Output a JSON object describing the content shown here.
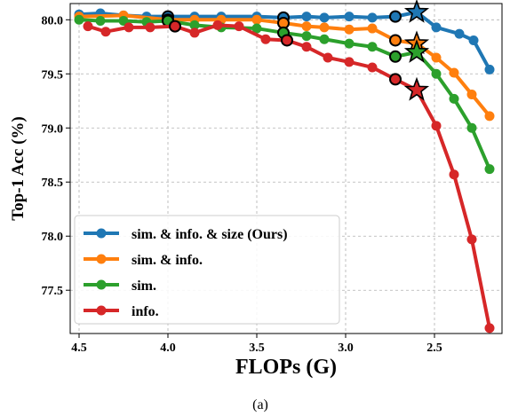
{
  "chart_data": {
    "type": "line",
    "xlabel": "FLOPs (G)",
    "ylabel": "Top-1 Acc (%)",
    "caption": "(a)",
    "x_reversed": true,
    "xlim": [
      4.55,
      2.12
    ],
    "ylim": [
      77.1,
      80.15
    ],
    "xticks": [
      4.5,
      4.0,
      3.5,
      3.0,
      2.5
    ],
    "xtick_labels": [
      "4.5",
      "4.0",
      "3.5",
      "3.0",
      "2.5"
    ],
    "yticks": [
      77.5,
      78.0,
      78.5,
      79.0,
      79.5,
      80.0
    ],
    "ytick_labels": [
      "77.5",
      "78.0",
      "78.5",
      "79.0",
      "79.5",
      "80.0"
    ],
    "grid": true,
    "legend_position": "lower-left",
    "series": [
      {
        "name": "sim. & info. & size (Ours)",
        "color": "#1f77b4",
        "x": [
          4.5,
          4.38,
          4.25,
          4.12,
          4.0,
          3.85,
          3.7,
          3.5,
          3.35,
          3.22,
          3.12,
          2.98,
          2.85,
          2.72,
          2.6,
          2.49,
          2.36,
          2.28,
          2.19
        ],
        "y": [
          80.05,
          80.06,
          80.04,
          80.03,
          80.03,
          80.03,
          80.03,
          80.03,
          80.02,
          80.03,
          80.02,
          80.03,
          80.02,
          80.03,
          80.07,
          79.93,
          79.87,
          79.81,
          79.54
        ],
        "highlight_x": [
          4.0,
          3.35,
          2.72
        ],
        "star_x": 2.6
      },
      {
        "name": "sim. & info.",
        "color": "#ff7f0e",
        "x": [
          4.5,
          4.25,
          4.0,
          3.85,
          3.7,
          3.5,
          3.35,
          3.22,
          3.12,
          2.98,
          2.85,
          2.72,
          2.6,
          2.49,
          2.39,
          2.29,
          2.19
        ],
        "y": [
          80.03,
          80.04,
          80.0,
          80.0,
          80.0,
          80.0,
          79.97,
          79.94,
          79.93,
          79.91,
          79.92,
          79.81,
          79.78,
          79.65,
          79.51,
          79.31,
          79.11
        ],
        "highlight_x": [
          4.0,
          3.35,
          2.72
        ],
        "star_x": 2.6
      },
      {
        "name": "sim.",
        "color": "#2ca02c",
        "x": [
          4.5,
          4.38,
          4.25,
          4.12,
          4.0,
          3.85,
          3.7,
          3.5,
          3.35,
          3.22,
          3.12,
          2.98,
          2.85,
          2.72,
          2.6,
          2.49,
          2.39,
          2.29,
          2.19
        ],
        "y": [
          80.0,
          79.99,
          79.99,
          79.98,
          79.99,
          79.95,
          79.93,
          79.92,
          79.88,
          79.85,
          79.82,
          79.78,
          79.75,
          79.66,
          79.7,
          79.5,
          79.27,
          79.0,
          78.62
        ],
        "highlight_x": [
          4.0,
          3.35,
          2.72
        ],
        "star_x": 2.6
      },
      {
        "name": "info.",
        "color": "#d62728",
        "x": [
          4.45,
          4.35,
          4.22,
          4.1,
          3.96,
          3.85,
          3.72,
          3.6,
          3.45,
          3.33,
          3.22,
          3.1,
          2.98,
          2.85,
          2.72,
          2.6,
          2.49,
          2.39,
          2.29,
          2.19
        ],
        "y": [
          79.94,
          79.89,
          79.93,
          79.93,
          79.94,
          79.88,
          79.95,
          79.94,
          79.82,
          79.81,
          79.75,
          79.65,
          79.61,
          79.56,
          79.45,
          79.35,
          79.02,
          78.57,
          77.97,
          77.15
        ],
        "highlight_x": [
          3.96,
          3.33,
          2.72
        ],
        "star_x": 2.6
      }
    ]
  }
}
